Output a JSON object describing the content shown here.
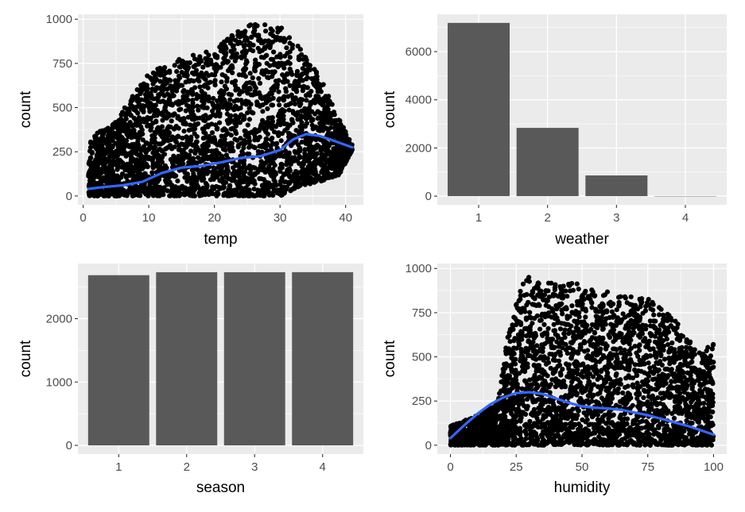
{
  "chart_data": [
    {
      "type": "scatter",
      "xlabel": "temp",
      "ylabel": "count",
      "xlim": [
        -0.8,
        42.7
      ],
      "ylim": [
        -50,
        1028
      ],
      "x_ticks": [
        0,
        10,
        20,
        30,
        40
      ],
      "y_ticks": [
        0,
        250,
        500,
        750,
        1000
      ],
      "x_tick_labels": [
        "0",
        "10",
        "20",
        "30",
        "40"
      ],
      "y_tick_labels": [
        "0",
        "250",
        "500",
        "750",
        "1000"
      ],
      "point_color": "#000000",
      "grid": true,
      "scatter_envelope": {
        "x": [
          0.8,
          5,
          10,
          15,
          20,
          25,
          30,
          33,
          36,
          39,
          41
        ],
        "ymin": [
          0,
          0,
          0,
          0,
          0,
          0,
          0,
          50,
          80,
          120,
          260
        ],
        "ymax": [
          320,
          430,
          700,
          780,
          830,
          980,
          960,
          840,
          680,
          440,
          290
        ]
      },
      "smooth": {
        "color": "#3366FF",
        "x": [
          0.8,
          3,
          6,
          9,
          12,
          15,
          18,
          21,
          24,
          27,
          30,
          32,
          34,
          36,
          38,
          41
        ],
        "y": [
          40,
          50,
          60,
          80,
          130,
          160,
          170,
          190,
          215,
          225,
          260,
          320,
          350,
          340,
          315,
          275
        ]
      }
    },
    {
      "type": "bar",
      "xlabel": "weather",
      "ylabel": "count",
      "categories": [
        "1",
        "2",
        "3",
        "4"
      ],
      "values": [
        7192,
        2834,
        859,
        1
      ],
      "ylim": [
        -360,
        7550
      ],
      "y_ticks": [
        0,
        2000,
        4000,
        6000
      ],
      "y_tick_labels": [
        "0",
        "2000",
        "4000",
        "6000"
      ],
      "bar_color": "#595959",
      "grid": true
    },
    {
      "type": "bar",
      "xlabel": "season",
      "ylabel": "count",
      "categories": [
        "1",
        "2",
        "3",
        "4"
      ],
      "values": [
        2686,
        2733,
        2733,
        2734
      ],
      "ylim": [
        -137,
        2870
      ],
      "y_ticks": [
        0,
        1000,
        2000
      ],
      "y_tick_labels": [
        "0",
        "1000",
        "2000"
      ],
      "bar_color": "#595959",
      "grid": true
    },
    {
      "type": "scatter",
      "xlabel": "humidity",
      "ylabel": "count",
      "xlim": [
        -5,
        105
      ],
      "ylim": [
        -50,
        1028
      ],
      "x_ticks": [
        0,
        25,
        50,
        75,
        100
      ],
      "y_ticks": [
        0,
        250,
        500,
        750,
        1000
      ],
      "x_tick_labels": [
        "0",
        "25",
        "50",
        "75",
        "100"
      ],
      "y_tick_labels": [
        "0",
        "250",
        "500",
        "750",
        "1000"
      ],
      "point_color": "#000000",
      "grid": true,
      "scatter_envelope": {
        "x": [
          0,
          10,
          18,
          22,
          28,
          35,
          45,
          55,
          65,
          75,
          85,
          95,
          100
        ],
        "ymin": [
          0,
          0,
          0,
          0,
          0,
          0,
          0,
          0,
          0,
          0,
          0,
          0,
          0
        ],
        "ymax": [
          110,
          170,
          250,
          640,
          960,
          920,
          930,
          880,
          860,
          840,
          720,
          520,
          580
        ]
      },
      "smooth": {
        "color": "#3366FF",
        "x": [
          0,
          5,
          10,
          15,
          20,
          25,
          30,
          35,
          40,
          45,
          50,
          55,
          60,
          65,
          70,
          75,
          80,
          85,
          90,
          95,
          100
        ],
        "y": [
          40,
          110,
          175,
          230,
          270,
          295,
          300,
          290,
          265,
          240,
          220,
          212,
          208,
          200,
          185,
          170,
          150,
          130,
          110,
          85,
          60
        ]
      }
    }
  ]
}
